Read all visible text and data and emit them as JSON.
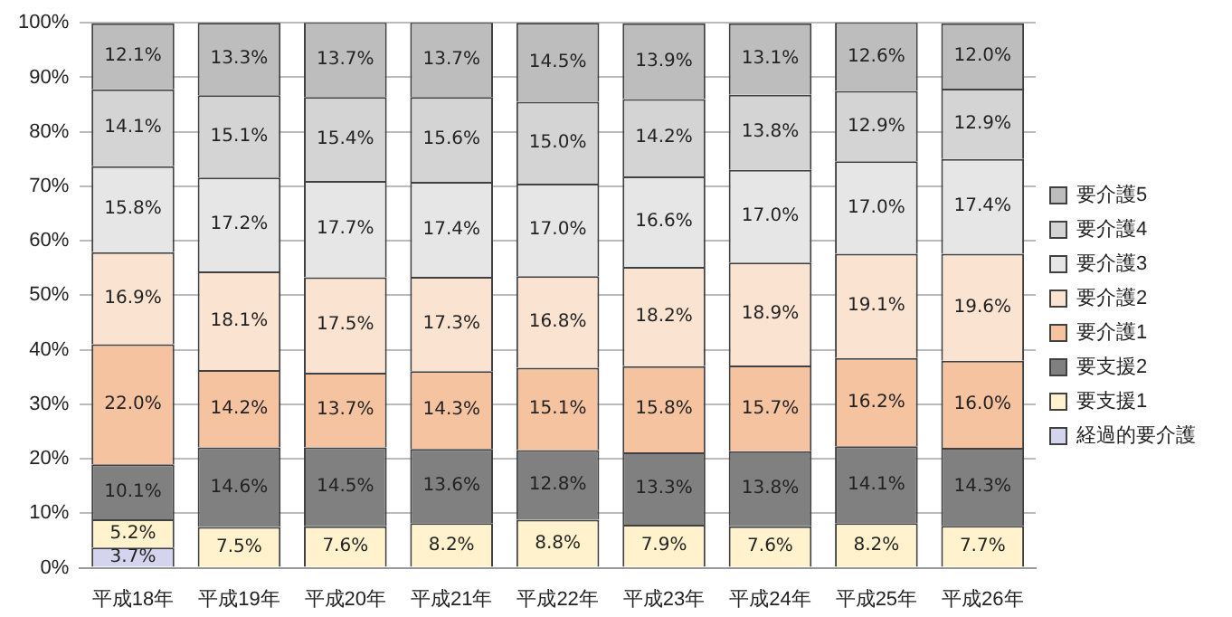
{
  "chart_data": {
    "type": "bar",
    "stacked": true,
    "categories": [
      "平成18年",
      "平成19年",
      "平成20年",
      "平成21年",
      "平成22年",
      "平成23年",
      "平成24年",
      "平成25年",
      "平成26年"
    ],
    "ylim": [
      0,
      100
    ],
    "yticks": [
      {
        "value": 0,
        "label": "0%"
      },
      {
        "value": 10,
        "label": "10%"
      },
      {
        "value": 20,
        "label": "20%"
      },
      {
        "value": 30,
        "label": "30%"
      },
      {
        "value": 40,
        "label": "40%"
      },
      {
        "value": 50,
        "label": "50%"
      },
      {
        "value": 60,
        "label": "60%"
      },
      {
        "value": 70,
        "label": "70%"
      },
      {
        "value": 80,
        "label": "80%"
      },
      {
        "value": 90,
        "label": "90%"
      },
      {
        "value": 100,
        "label": "100%"
      }
    ],
    "grid": "y",
    "legend": "right",
    "series": [
      {
        "name": "経過的要介護",
        "color": "#d4d4ee",
        "values": [
          3.7,
          null,
          null,
          null,
          null,
          null,
          null,
          null,
          null
        ],
        "value_labels": [
          "3.7%",
          null,
          null,
          null,
          null,
          null,
          null,
          null,
          null
        ]
      },
      {
        "name": "要支援1",
        "color": "#fff2cc",
        "values": [
          5.2,
          7.5,
          7.6,
          8.2,
          8.8,
          7.9,
          7.6,
          8.2,
          7.7
        ],
        "value_labels": [
          "5.2%",
          "7.5%",
          "7.6%",
          "8.2%",
          "8.8%",
          "7.9%",
          "7.6%",
          "8.2%",
          "7.7%"
        ]
      },
      {
        "name": "要支援2",
        "color": "#808080",
        "values": [
          10.1,
          14.6,
          14.5,
          13.6,
          12.8,
          13.3,
          13.8,
          14.1,
          14.3
        ],
        "value_labels": [
          "10.1%",
          "14.6%",
          "14.5%",
          "13.6%",
          "12.8%",
          "13.3%",
          "13.8%",
          "14.1%",
          "14.3%"
        ]
      },
      {
        "name": "要介護1",
        "color": "#f6c3a0",
        "values": [
          22.0,
          14.2,
          13.7,
          14.3,
          15.1,
          15.8,
          15.7,
          16.2,
          16.0
        ],
        "value_labels": [
          "22.0%",
          "14.2%",
          "13.7%",
          "14.3%",
          "15.1%",
          "15.8%",
          "15.7%",
          "16.2%",
          "16.0%"
        ]
      },
      {
        "name": "要介護2",
        "color": "#fbe3d2",
        "values": [
          16.9,
          18.1,
          17.5,
          17.3,
          16.8,
          18.2,
          18.9,
          19.1,
          19.6
        ],
        "value_labels": [
          "16.9%",
          "18.1%",
          "17.5%",
          "17.3%",
          "16.8%",
          "18.2%",
          "18.9%",
          "19.1%",
          "19.6%"
        ]
      },
      {
        "name": "要介護3",
        "color": "#e6e6e6",
        "values": [
          15.8,
          17.2,
          17.7,
          17.4,
          17.0,
          16.6,
          17.0,
          17.0,
          17.4
        ],
        "value_labels": [
          "15.8%",
          "17.2%",
          "17.7%",
          "17.4%",
          "17.0%",
          "16.6%",
          "17.0%",
          "17.0%",
          "17.4%"
        ]
      },
      {
        "name": "要介護4",
        "color": "#d4d4d4",
        "values": [
          14.1,
          15.1,
          15.4,
          15.6,
          15.0,
          14.2,
          13.8,
          12.9,
          12.9
        ],
        "value_labels": [
          "14.1%",
          "15.1%",
          "15.4%",
          "15.6%",
          "15.0%",
          "14.2%",
          "13.8%",
          "12.9%",
          "12.9%"
        ]
      },
      {
        "name": "要介護5",
        "color": "#bdbdbd",
        "values": [
          12.1,
          13.3,
          13.7,
          13.7,
          14.5,
          13.9,
          13.1,
          12.6,
          12.0
        ],
        "value_labels": [
          "12.1%",
          "13.3%",
          "13.7%",
          "13.7%",
          "14.5%",
          "13.9%",
          "13.1%",
          "12.6%",
          "12.0%"
        ]
      }
    ]
  }
}
